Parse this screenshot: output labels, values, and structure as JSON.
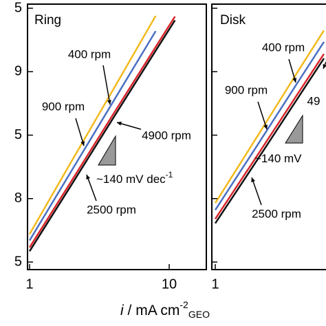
{
  "chart_data": [
    {
      "type": "line",
      "title": "Ring",
      "xscale": "log",
      "xlim": [
        1,
        18
      ],
      "xticks": [
        1,
        10
      ],
      "ylim": [
        0,
        4
      ],
      "yticks": [
        0,
        1,
        2,
        3,
        4
      ],
      "ytick_labels": [
        "5",
        "8",
        "5",
        "9",
        "5"
      ],
      "x": [
        1,
        2,
        4,
        8,
        11
      ],
      "series": [
        {
          "name": "400 rpm",
          "color": "#f2b91c",
          "values": [
            0.44,
            1.59,
            2.73,
            3.88,
            null
          ]
        },
        {
          "name": "900 rpm",
          "color": "#4a6fc2",
          "values": [
            0.34,
            1.44,
            2.54,
            3.64,
            null
          ]
        },
        {
          "name": "4900 rpm",
          "color": "#d8232a",
          "values": [
            0.23,
            1.28,
            2.34,
            3.39,
            3.87
          ]
        },
        {
          "name": "2500 rpm",
          "color": "#111111",
          "values": [
            0.17,
            1.22,
            2.28,
            3.33,
            3.81
          ]
        }
      ],
      "slope_label": "~140 mV dec",
      "slope_sup": "-1"
    },
    {
      "type": "line",
      "title": "Disk",
      "xscale": "log",
      "xlim": [
        1,
        6.2
      ],
      "xticks": [
        1
      ],
      "ylim": [
        0,
        4
      ],
      "yticks": [
        0,
        1,
        2,
        3,
        4
      ],
      "x": [
        1,
        2,
        4,
        6
      ],
      "series": [
        {
          "name": "400 rpm",
          "color": "#f2b91c",
          "values": [
            0.93,
            1.98,
            3.04,
            3.65
          ]
        },
        {
          "name": "900 rpm",
          "color": "#4a6fc2",
          "values": [
            0.82,
            1.84,
            2.87,
            3.47
          ]
        },
        {
          "name": "49",
          "color": "#d8232a",
          "values": [
            0.68,
            1.68,
            2.69,
            3.28
          ]
        },
        {
          "name": "2500 rpm",
          "color": "#111111",
          "values": [
            0.61,
            1.61,
            2.62,
            3.21
          ]
        }
      ],
      "slope_label": "~140 mV"
    }
  ],
  "xlabel": {
    "italic": "i",
    "text": " / mA cm",
    "sup": "-2",
    "sub": "GEO"
  }
}
